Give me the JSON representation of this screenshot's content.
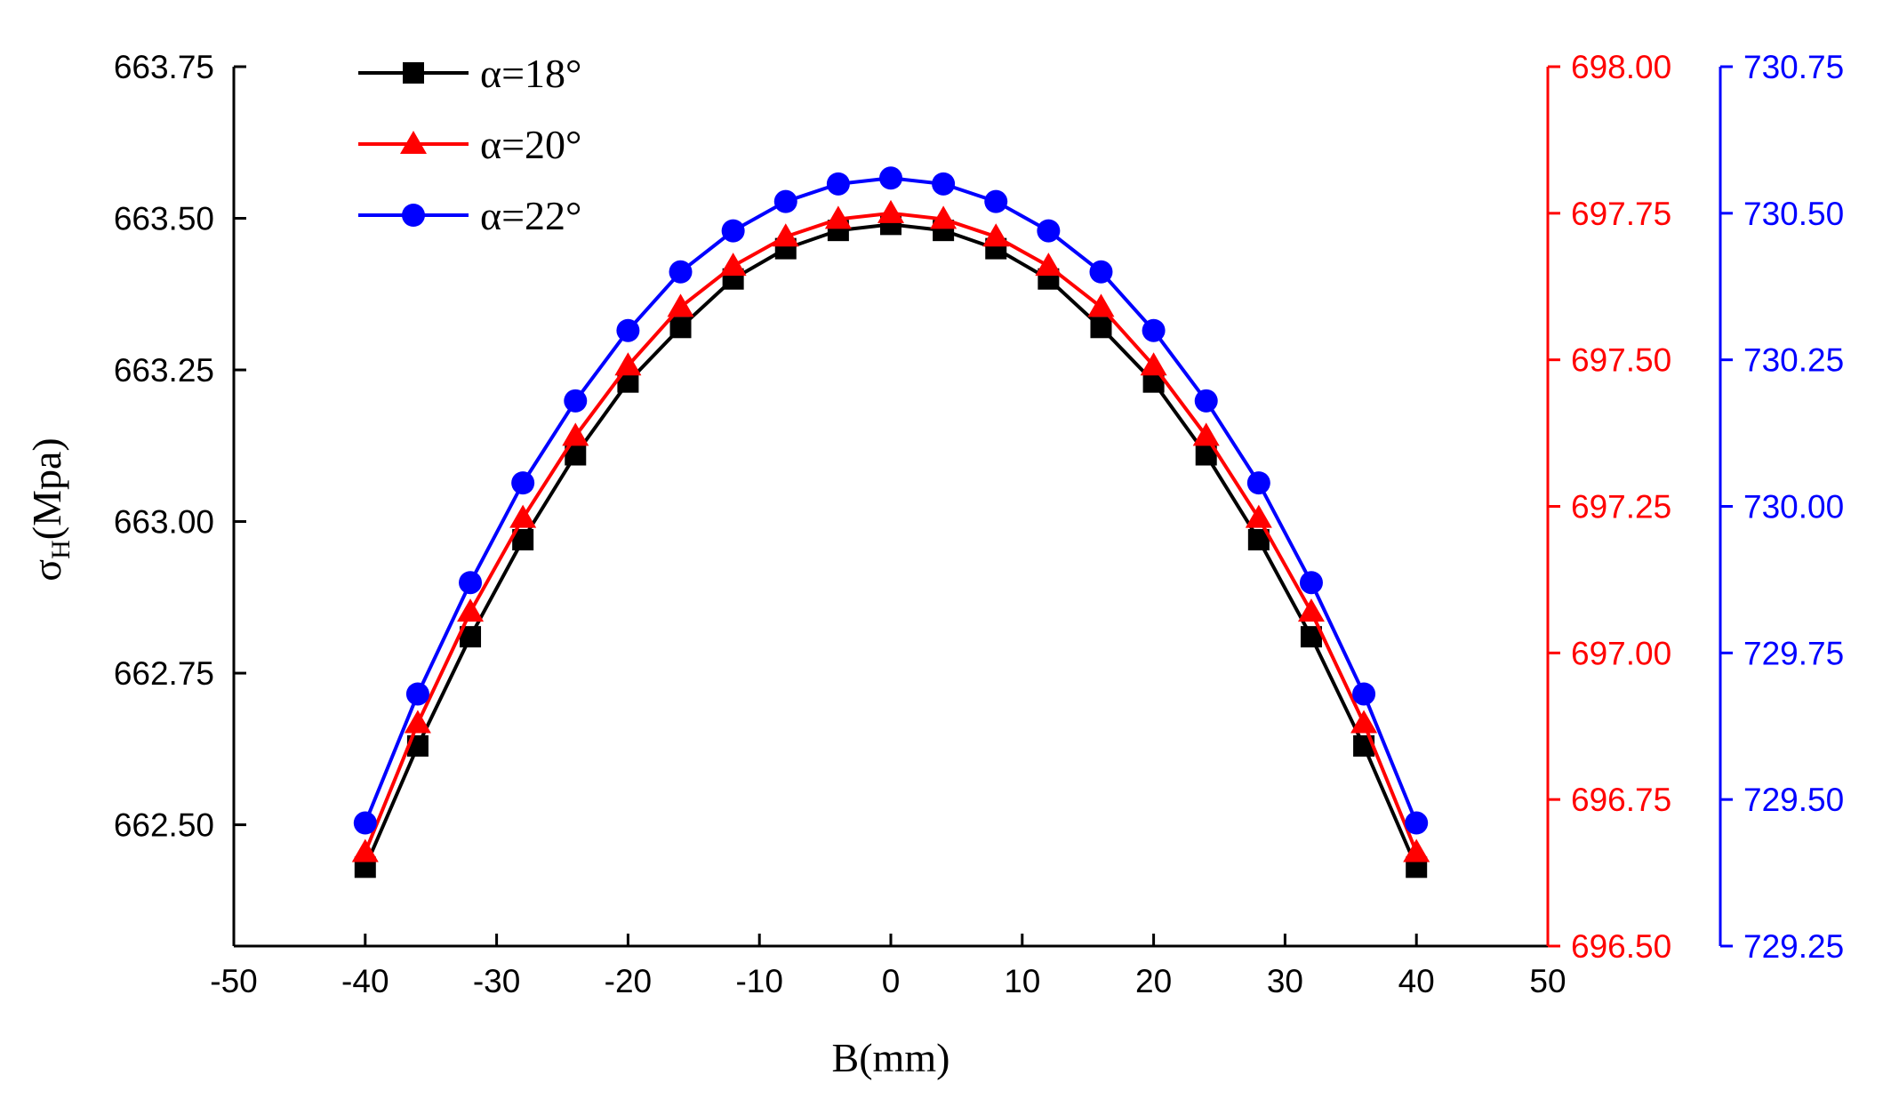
{
  "chart_data": {
    "type": "line",
    "xlabel": "B(mm)",
    "ylabel": "σH(Mpa)",
    "xlim": [
      -50,
      50
    ],
    "x_ticks": [
      -50,
      -40,
      -30,
      -20,
      -10,
      0,
      10,
      20,
      30,
      40,
      50
    ],
    "grid": false,
    "legend_position": "top-left",
    "x": [
      -40,
      -36,
      -32,
      -28,
      -24,
      -20,
      -16,
      -12,
      -8,
      -4,
      0,
      4,
      8,
      12,
      16,
      20,
      24,
      28,
      32,
      36,
      40
    ],
    "axes": [
      {
        "id": "left",
        "side": "left",
        "color": "#000000",
        "ylim": [
          662.3,
          663.75
        ],
        "ticks": [
          662.5,
          662.75,
          663.0,
          663.25,
          663.5,
          663.75
        ]
      },
      {
        "id": "right1",
        "side": "right",
        "color": "#ff0000",
        "ylim": [
          696.5,
          698.0
        ],
        "ticks": [
          696.5,
          696.75,
          697.0,
          697.25,
          697.5,
          697.75,
          698.0
        ]
      },
      {
        "id": "right2",
        "side": "right",
        "color": "#0000ff",
        "ylim": [
          729.25,
          730.75
        ],
        "ticks": [
          729.25,
          729.5,
          729.75,
          730.0,
          730.25,
          730.5,
          730.75
        ]
      }
    ],
    "series": [
      {
        "name": "α=18°",
        "axis": "left",
        "color": "#000000",
        "marker": "square",
        "values": [
          662.43,
          662.63,
          662.81,
          662.97,
          663.11,
          663.23,
          663.32,
          663.4,
          663.45,
          663.48,
          663.49,
          663.48,
          663.45,
          663.4,
          663.32,
          663.23,
          663.11,
          662.97,
          662.81,
          662.63,
          662.43
        ]
      },
      {
        "name": "α=20°",
        "axis": "right1",
        "color": "#ff0000",
        "marker": "triangle",
        "values": [
          696.66,
          696.88,
          697.07,
          697.23,
          697.37,
          697.49,
          697.59,
          697.66,
          697.71,
          697.74,
          697.75,
          697.74,
          697.71,
          697.66,
          697.59,
          697.49,
          697.37,
          697.23,
          697.07,
          696.88,
          696.66
        ]
      },
      {
        "name": "α=22°",
        "axis": "right2",
        "color": "#0000ff",
        "marker": "circle",
        "values": [
          729.46,
          729.68,
          729.87,
          730.04,
          730.18,
          730.3,
          730.4,
          730.47,
          730.52,
          730.55,
          730.56,
          730.55,
          730.52,
          730.47,
          730.4,
          730.3,
          730.18,
          730.04,
          729.87,
          729.68,
          729.46
        ]
      }
    ]
  }
}
